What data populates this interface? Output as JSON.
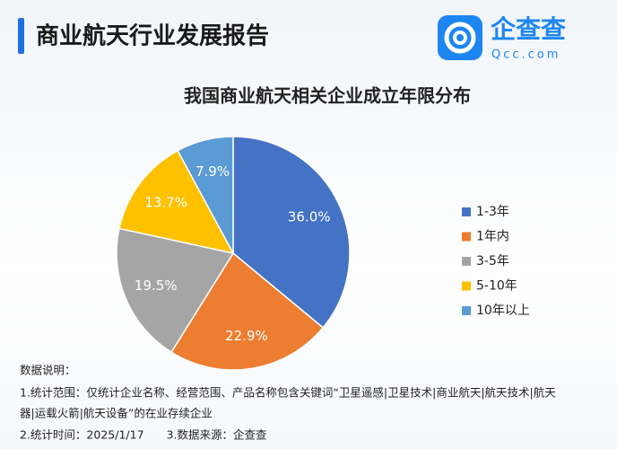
{
  "header": {
    "title": "商业航天行业发展报告",
    "logo_name": "企查查",
    "logo_domain": "Qcc.com"
  },
  "chart_data": {
    "type": "pie",
    "title": "我国商业航天相关企业成立年限分布",
    "categories": [
      "1-3年",
      "1年内",
      "3-5年",
      "5-10年",
      "10年以上"
    ],
    "values": [
      36.0,
      22.9,
      19.5,
      13.7,
      7.9
    ],
    "value_labels": [
      "36.0%",
      "22.9%",
      "19.5%",
      "13.7%",
      "7.9%"
    ],
    "colors": [
      "#4472c4",
      "#ed7d31",
      "#a5a5a5",
      "#ffc000",
      "#5b9bd5"
    ],
    "legend": "right"
  },
  "notes": [
    "数据说明：",
    "1.统计范围：仅统计企业名称、经营范围、产品名称包含关键词“卫星遥感|卫星技术|商业航天|航天技术|航天",
    "器|运载火箭|航天设备”的在业存续企业",
    "2.统计时间：2025/1/17　　3.数据来源：企查查"
  ]
}
